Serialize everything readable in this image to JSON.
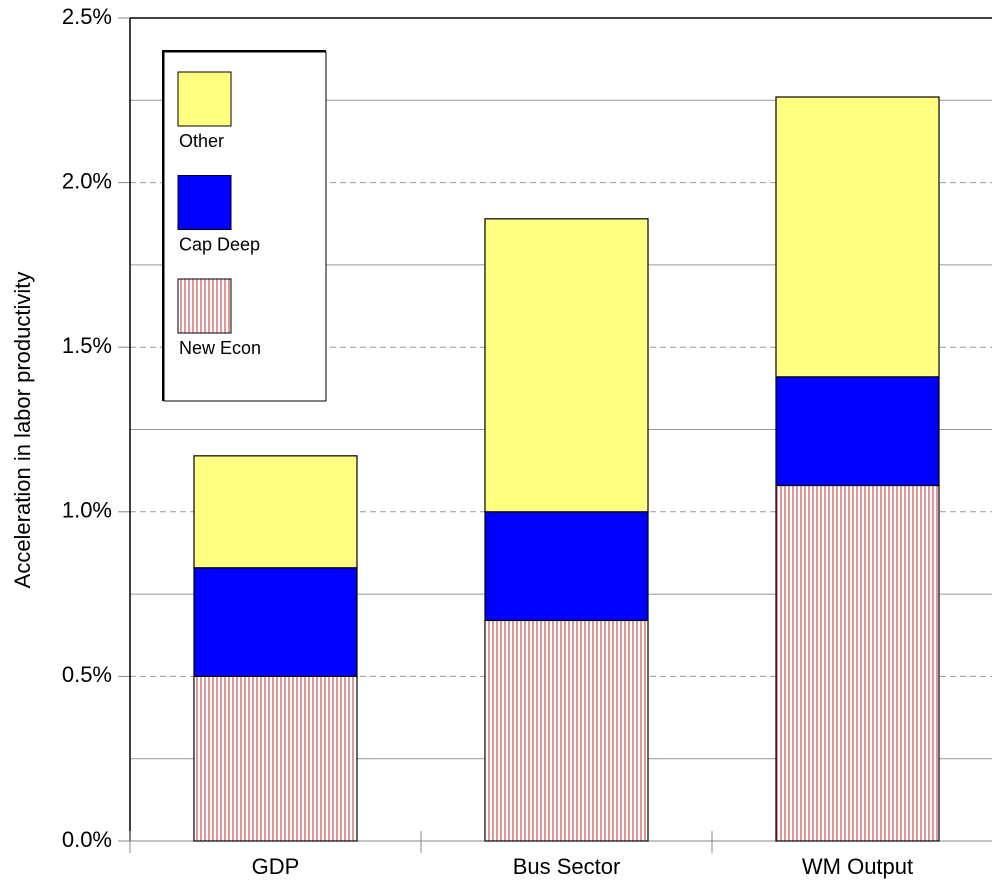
{
  "chart_data": {
    "type": "stacked_bar",
    "y_label": "Acceleration in labor productivity",
    "categories": [
      "GDP",
      "Bus Sector",
      "WM Output"
    ],
    "series": [
      {
        "name": "New Econ",
        "color": "#c03030",
        "pattern": "vertical-stripes",
        "values": [
          0.5,
          0.67,
          1.08
        ]
      },
      {
        "name": "Cap Deep",
        "color": "#0000ff",
        "values": [
          0.33,
          0.33,
          0.33
        ]
      },
      {
        "name": "Other",
        "color": "#ffff80",
        "values": [
          0.34,
          0.89,
          0.85
        ]
      }
    ],
    "ylim": [
      0,
      2.5
    ],
    "yticks": [
      {
        "value": 0,
        "label": "0.0%"
      },
      {
        "value": 0.5,
        "label": "0.5%"
      },
      {
        "value": 1,
        "label": "1.0%"
      },
      {
        "value": 1.5,
        "label": "1.5%"
      },
      {
        "value": 2,
        "label": "2.0%"
      },
      {
        "value": 2.5,
        "label": "2.5%"
      }
    ],
    "minor_yticks": [
      0.25,
      0.75,
      1.25,
      1.75,
      2.25
    ],
    "grid": true,
    "legend": "upper left"
  }
}
